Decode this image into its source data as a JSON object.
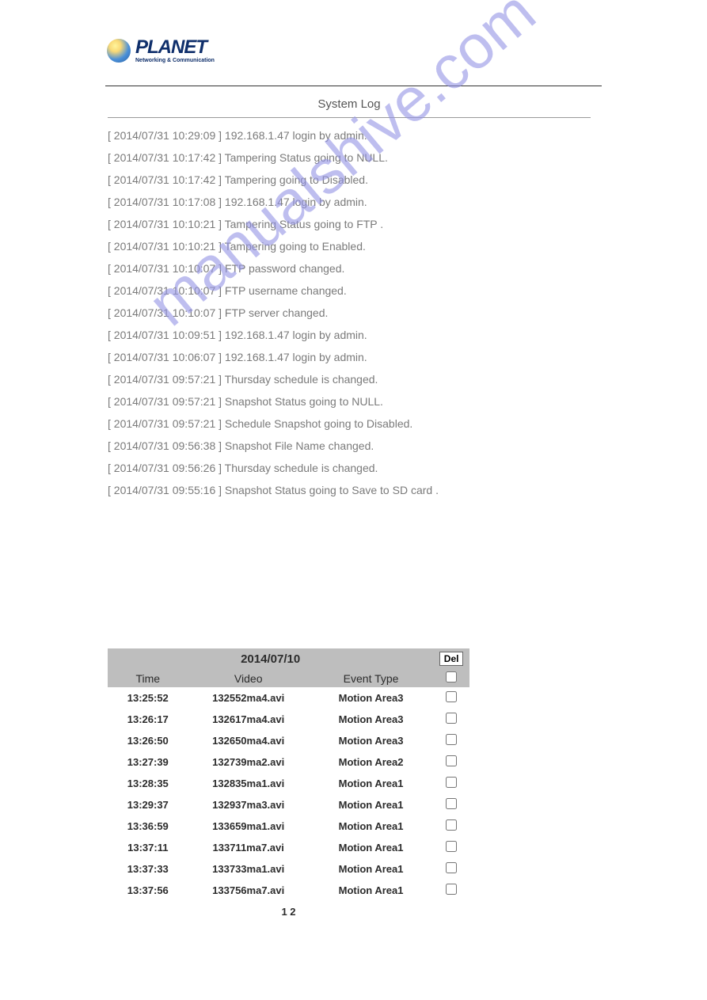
{
  "logo": {
    "brand": "PLANET",
    "tagline": "Networking & Communication"
  },
  "syslog": {
    "title": "System Log",
    "lines": [
      "[ 2014/07/31 10:29:09 ] 192.168.1.47 login by admin.",
      "[ 2014/07/31 10:17:42 ] Tampering Status going to NULL.",
      "[ 2014/07/31 10:17:42 ] Tampering going to Disabled.",
      "[ 2014/07/31 10:17:08 ] 192.168.1.47 login by admin.",
      "[ 2014/07/31 10:10:21 ] Tampering Status going to FTP .",
      "[ 2014/07/31 10:10:21 ] Tampering going to Enabled.",
      "[ 2014/07/31 10:10:07 ] FTP password changed.",
      "[ 2014/07/31 10:10:07 ] FTP username changed.",
      "[ 2014/07/31 10:10:07 ] FTP server changed.",
      "[ 2014/07/31 10:09:51 ] 192.168.1.47 login by admin.",
      "[ 2014/07/31 10:06:07 ] 192.168.1.47 login by admin.",
      "[ 2014/07/31 09:57:21 ] Thursday schedule is changed.",
      "[ 2014/07/31 09:57:21 ] Snapshot Status going to NULL.",
      "[ 2014/07/31 09:57:21 ] Schedule Snapshot going to Disabled.",
      "[ 2014/07/31 09:56:38 ] Snapshot File Name changed.",
      "[ 2014/07/31 09:56:26 ] Thursday schedule is changed.",
      "[ 2014/07/31 09:55:16 ] Snapshot Status going to Save to SD card ."
    ]
  },
  "watermark": "manualshive.com",
  "eventTable": {
    "date": "2014/07/10",
    "del_label": "Del",
    "columns": {
      "time": "Time",
      "video": "Video",
      "event": "Event Type"
    },
    "rows": [
      {
        "time": "13:25:52",
        "video": "132552ma4.avi",
        "event": "Motion Area3"
      },
      {
        "time": "13:26:17",
        "video": "132617ma4.avi",
        "event": "Motion Area3"
      },
      {
        "time": "13:26:50",
        "video": "132650ma4.avi",
        "event": "Motion Area3"
      },
      {
        "time": "13:27:39",
        "video": "132739ma2.avi",
        "event": "Motion Area2"
      },
      {
        "time": "13:28:35",
        "video": "132835ma1.avi",
        "event": "Motion Area1"
      },
      {
        "time": "13:29:37",
        "video": "132937ma3.avi",
        "event": "Motion Area1"
      },
      {
        "time": "13:36:59",
        "video": "133659ma1.avi",
        "event": "Motion Area1"
      },
      {
        "time": "13:37:11",
        "video": "133711ma7.avi",
        "event": "Motion Area1"
      },
      {
        "time": "13:37:33",
        "video": "133733ma1.avi",
        "event": "Motion Area1"
      },
      {
        "time": "13:37:56",
        "video": "133756ma7.avi",
        "event": "Motion Area1"
      }
    ],
    "pager": "1 2"
  },
  "colors": {
    "log_text": "#7a7a7a",
    "table_header_bg": "#bebebe",
    "table_text": "#2c2c2c",
    "watermark": "#9494e6",
    "logo_dark": "#0f2f6b"
  }
}
